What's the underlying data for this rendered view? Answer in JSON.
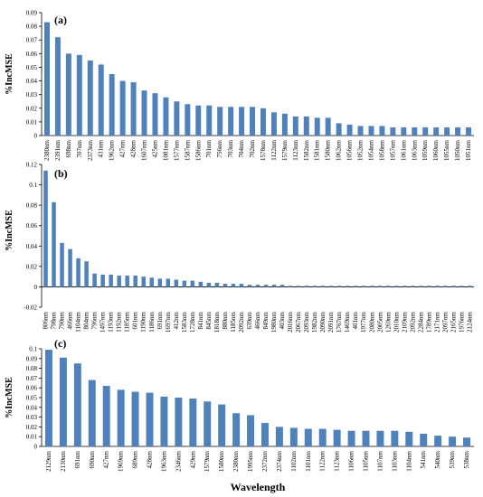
{
  "chart_data": [
    {
      "type": "bar",
      "panel": "(a)",
      "ylabel": "%IncMSE",
      "ylim": [
        0,
        0.09
      ],
      "yticks": [
        "0",
        "0.01",
        "0.02",
        "0.03",
        "0.04",
        "0.05",
        "0.06",
        "0.07",
        "0.08",
        "0.09"
      ],
      "color": "#4f81bd",
      "categories": [
        "2380nm",
        "2391nm",
        "698nm",
        "707nm",
        "2373nm",
        "431nm",
        "1962nm",
        "427nm",
        "428nm",
        "1607nm",
        "425nm",
        "1081nm",
        "1577nm",
        "1587nm",
        "1586nm",
        "701nm",
        "756nm",
        "703nm",
        "704nm",
        "702nm",
        "1578nm",
        "1122nm",
        "1579nm",
        "1123nm",
        "1582nm",
        "1581nm",
        "1580nm",
        "1062nm",
        "1056nm",
        "1052nm",
        "1054nm",
        "1058nm",
        "1057nm",
        "1061nm",
        "1063nm",
        "1059nm",
        "1060nm",
        "1055nm",
        "1050nm",
        "1051nm"
      ],
      "values": [
        0.083,
        0.072,
        0.06,
        0.059,
        0.055,
        0.052,
        0.045,
        0.04,
        0.039,
        0.033,
        0.031,
        0.028,
        0.025,
        0.023,
        0.022,
        0.022,
        0.021,
        0.021,
        0.021,
        0.021,
        0.02,
        0.017,
        0.016,
        0.014,
        0.014,
        0.013,
        0.013,
        0.009,
        0.008,
        0.007,
        0.007,
        0.007,
        0.006,
        0.006,
        0.006,
        0.006,
        0.006,
        0.006,
        0.006,
        0.006
      ]
    },
    {
      "type": "bar",
      "panel": "(b)",
      "ylabel": "%IncMSE",
      "ylim": [
        -0.02,
        0.12
      ],
      "yticks": [
        "-0.02",
        "0",
        "0.02",
        "0.04",
        "0.06",
        "0.08",
        "0.1",
        "0.12"
      ],
      "color": "#4f81bd",
      "categories": [
        "806nm",
        "798nm",
        "790nm",
        "466nm",
        "1104nm",
        "804nm",
        "796nm",
        "1497nm",
        "1193nm",
        "1192nm",
        "1185nm",
        "601nm",
        "1190nm",
        "1186nm",
        "691nm",
        "1697nm",
        "412nm",
        "1583nm",
        "1728nm",
        "841nm",
        "845nm",
        "1818nm",
        "880nm",
        "1185nm",
        "2092nm",
        "639nm",
        "466nm",
        "849nm",
        "1980nm",
        "403nm",
        "2016nm",
        "2067nm",
        "2093nm",
        "1982nm",
        "2090nm",
        "2091nm",
        "1767nm",
        "1469nm",
        "401nm",
        "1977nm",
        "2080nm",
        "2005nm",
        "1269nm",
        "2010nm",
        "2109nm",
        "2092nm",
        "2284nm",
        "1789nm",
        "2171nm",
        "2097nm",
        "2165nm",
        "1976nm",
        "2124nm"
      ],
      "values": [
        0.114,
        0.083,
        0.043,
        0.037,
        0.028,
        0.025,
        0.013,
        0.012,
        0.012,
        0.011,
        0.011,
        0.011,
        0.01,
        0.009,
        0.008,
        0.008,
        0.007,
        0.006,
        0.006,
        0.005,
        0.004,
        0.004,
        0.003,
        0.003,
        0.003,
        0.002,
        0.002,
        0.002,
        0.002,
        0.002,
        0.001,
        0.001,
        0.001,
        0.001,
        0.001,
        0.001,
        0.001,
        0.001,
        0.001,
        0.001,
        0.001,
        0.001,
        0.001,
        0.001,
        0.001,
        0.001,
        0.001,
        0.001,
        0.001,
        0.001,
        0.001,
        0.001,
        0.001
      ]
    },
    {
      "type": "bar",
      "panel": "(c)",
      "ylabel": "%IncMSE",
      "xlabel": "Wavelength",
      "ylim": [
        0,
        0.1
      ],
      "yticks": [
        "0",
        "0.01",
        "0.02",
        "0.03",
        "0.04",
        "0.05",
        "0.06",
        "0.07",
        "0.08",
        "0.09",
        "0.1"
      ],
      "color": "#4f81bd",
      "categories": [
        "2129nm",
        "2130nm",
        "691nm",
        "690nm",
        "427nm",
        "1969nm",
        "689nm",
        "428nm",
        "1963nm",
        "2346nm",
        "429nm",
        "1579nm",
        "1580nm",
        "2380nm",
        "1995nm",
        "2372nm",
        "2374nm",
        "1102nm",
        "1101nm",
        "1122nm",
        "1123nm",
        "1106nm",
        "1105nm",
        "1107nm",
        "1103nm",
        "1104nm",
        "541nm",
        "540nm",
        "539nm",
        "538nm"
      ],
      "values": [
        0.099,
        0.091,
        0.085,
        0.068,
        0.062,
        0.058,
        0.056,
        0.055,
        0.051,
        0.05,
        0.049,
        0.046,
        0.043,
        0.034,
        0.032,
        0.024,
        0.02,
        0.019,
        0.018,
        0.018,
        0.017,
        0.016,
        0.016,
        0.016,
        0.016,
        0.015,
        0.013,
        0.011,
        0.01,
        0.009
      ]
    }
  ]
}
